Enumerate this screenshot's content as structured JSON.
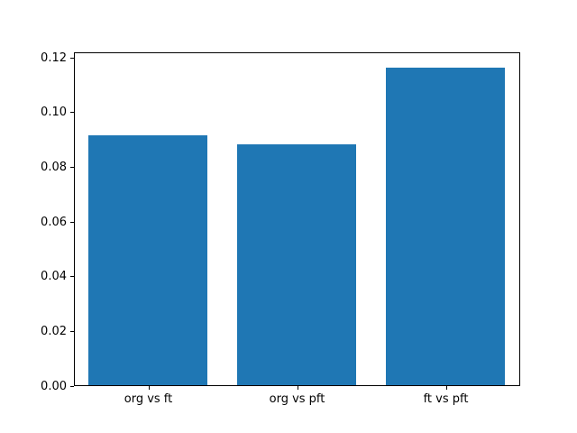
{
  "chart_data": {
    "type": "bar",
    "categories": [
      "org vs ft",
      "org vs pft",
      "ft vs pft"
    ],
    "values": [
      0.0915,
      0.088,
      0.116
    ],
    "title": "",
    "xlabel": "",
    "ylabel": "",
    "ylim": [
      0,
      0.122
    ],
    "yticks": [
      0.0,
      0.02,
      0.04,
      0.06,
      0.08,
      0.1,
      0.12
    ],
    "ytick_labels": [
      "0.00",
      "0.02",
      "0.04",
      "0.06",
      "0.08",
      "0.10",
      "0.12"
    ],
    "bar_color": "#1f77b4",
    "bar_width_fraction": 0.26667,
    "grid": false,
    "legend": null,
    "background_color": "#ffffff",
    "spine_color": "#000000"
  }
}
